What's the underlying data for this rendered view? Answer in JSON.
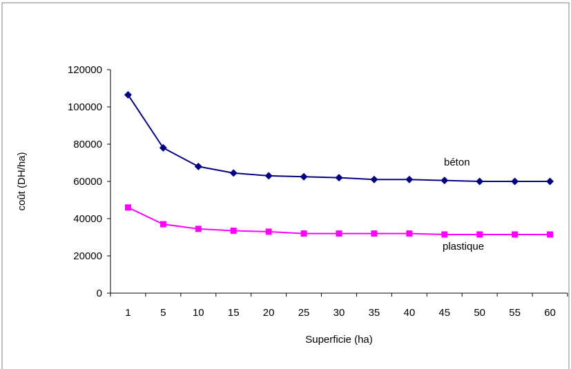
{
  "chart_data": {
    "type": "line",
    "title": "",
    "xlabel": "Superficie (ha)",
    "ylabel": "coût (DH/ha)",
    "categories": [
      "1",
      "5",
      "10",
      "15",
      "20",
      "25",
      "30",
      "35",
      "40",
      "45",
      "50",
      "55",
      "60"
    ],
    "ylim": [
      0,
      120000
    ],
    "yticks": [
      "0",
      "20000",
      "40000",
      "60000",
      "80000",
      "100000",
      "120000"
    ],
    "grid": false,
    "legend": "none",
    "series": [
      {
        "name": "béton",
        "color": "#000080",
        "marker": "diamond",
        "values": [
          106500,
          78000,
          68000,
          64500,
          63000,
          62500,
          62000,
          61000,
          61000,
          60500,
          60000,
          60000,
          60000
        ]
      },
      {
        "name": "plastique",
        "color": "#ff00ff",
        "marker": "square",
        "values": [
          46000,
          37000,
          34500,
          33500,
          33000,
          32000,
          32000,
          32000,
          32000,
          31500,
          31500,
          31500,
          31500
        ]
      }
    ]
  }
}
